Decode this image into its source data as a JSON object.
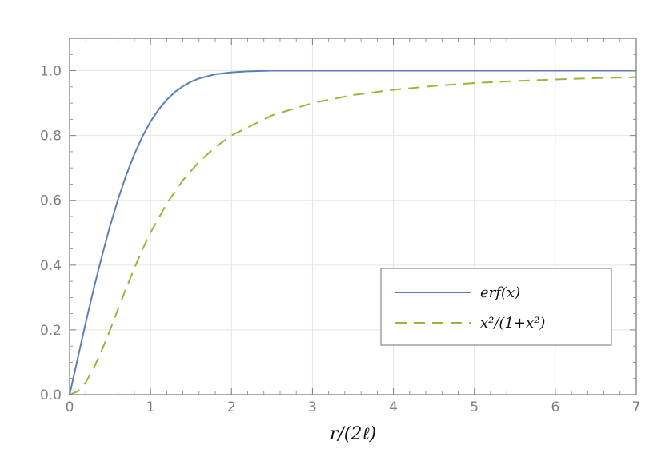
{
  "chart_data": {
    "type": "line",
    "title": "",
    "xlabel": "r/(2ℓ)",
    "ylabel": "",
    "xlim": [
      0,
      7
    ],
    "ylim": [
      0,
      1.1
    ],
    "x_ticks": [
      "0",
      "1",
      "2",
      "3",
      "4",
      "5",
      "6",
      "7"
    ],
    "y_ticks": [
      "0.0",
      "0.2",
      "0.4",
      "0.6",
      "0.8",
      "1.0"
    ],
    "grid": true,
    "legend_position": "center-right",
    "series": [
      {
        "name": "erf(x)",
        "color": "#5b7fb8",
        "dash": "solid",
        "x": [
          0,
          0.1,
          0.2,
          0.3,
          0.4,
          0.5,
          0.6,
          0.7,
          0.8,
          0.9,
          1.0,
          1.1,
          1.2,
          1.3,
          1.4,
          1.5,
          1.6,
          1.8,
          2.0,
          2.2,
          2.5,
          3.0,
          4.0,
          5.0,
          6.0,
          7.0
        ],
        "y": [
          0,
          0.112,
          0.223,
          0.329,
          0.428,
          0.521,
          0.604,
          0.678,
          0.742,
          0.797,
          0.843,
          0.88,
          0.91,
          0.934,
          0.952,
          0.966,
          0.976,
          0.989,
          0.995,
          0.998,
          1.0,
          1.0,
          1.0,
          1.0,
          1.0,
          1.0
        ]
      },
      {
        "name": "x²/(1+x²)",
        "color": "#97b63a",
        "dash": "dashed",
        "x": [
          0,
          0.1,
          0.2,
          0.3,
          0.4,
          0.5,
          0.6,
          0.7,
          0.8,
          0.9,
          1.0,
          1.2,
          1.4,
          1.6,
          1.8,
          2.0,
          2.5,
          3.0,
          3.5,
          4.0,
          4.5,
          5.0,
          5.5,
          6.0,
          6.5,
          7.0
        ],
        "y": [
          0,
          0.01,
          0.038,
          0.083,
          0.138,
          0.2,
          0.265,
          0.329,
          0.39,
          0.448,
          0.5,
          0.59,
          0.662,
          0.719,
          0.764,
          0.8,
          0.862,
          0.9,
          0.925,
          0.941,
          0.953,
          0.962,
          0.968,
          0.973,
          0.977,
          0.98
        ]
      }
    ]
  }
}
